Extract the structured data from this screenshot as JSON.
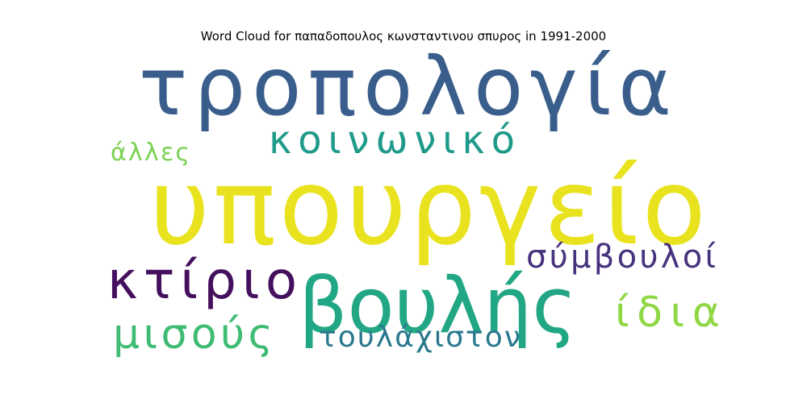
{
  "chart_data": {
    "type": "wordcloud",
    "title": "Word Cloud for παπαδοπουλος κωνσταντινου σπυρος in 1991-2000",
    "words": [
      {
        "text": "υπουργείο",
        "color": "#e9e31f"
      },
      {
        "text": "τροπολογία",
        "color": "#3a5e8c"
      },
      {
        "text": "βουλής",
        "color": "#22a784"
      },
      {
        "text": "κτίριο",
        "color": "#440f5c"
      },
      {
        "text": "κοινωνικό",
        "color": "#1f9a8a"
      },
      {
        "text": "σύμβουλοί",
        "color": "#46337e"
      },
      {
        "text": "μισούς",
        "color": "#3fbc73"
      },
      {
        "text": "ίδια",
        "color": "#8fd744"
      },
      {
        "text": "τουλάχιστον",
        "color": "#2a788e"
      },
      {
        "text": "άλλες",
        "color": "#7ad151"
      }
    ]
  }
}
